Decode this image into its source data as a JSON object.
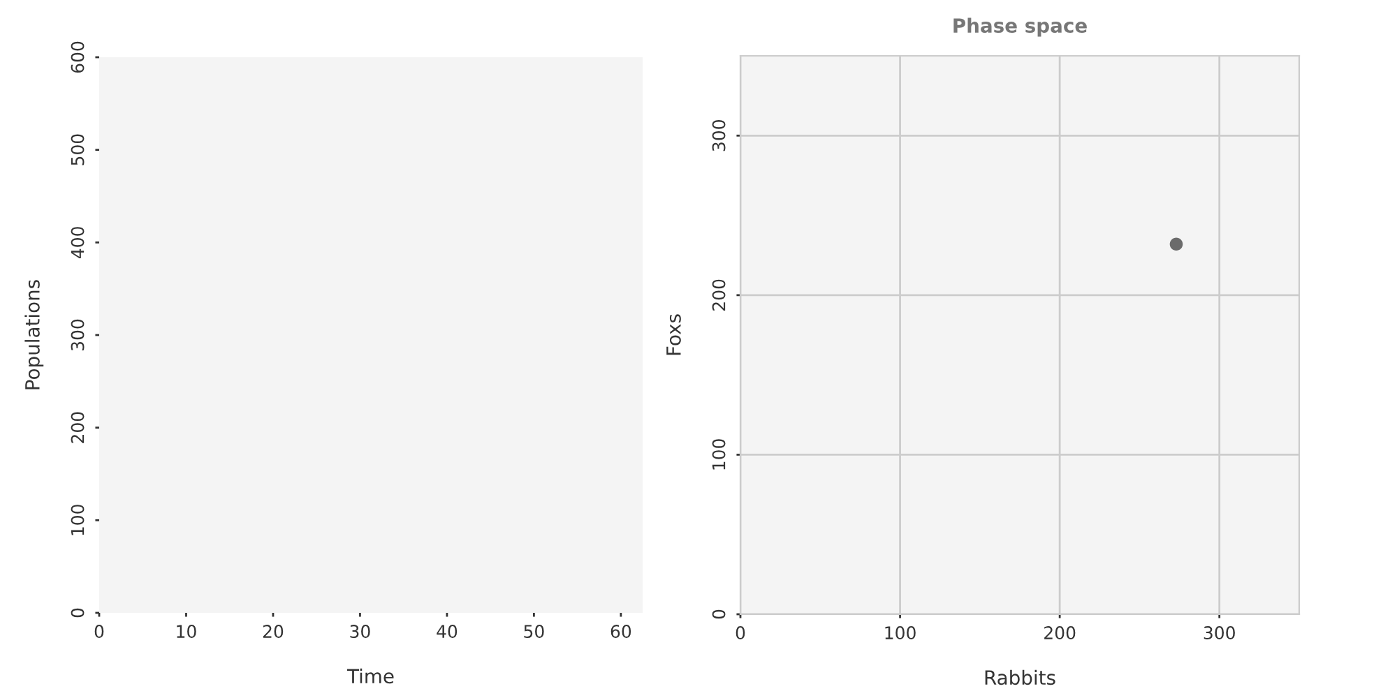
{
  "chart_data": [
    {
      "type": "line",
      "xlabel": "Time",
      "ylabel": "Populations",
      "xlim": [
        0,
        62.5
      ],
      "xticks": [
        0,
        10,
        20,
        30,
        40,
        50,
        60
      ],
      "ylim": [
        0,
        600
      ],
      "yticks": [
        0,
        100,
        200,
        300,
        400,
        500,
        600
      ]
    },
    {
      "type": "scatter",
      "title": "Phase space",
      "xlabel": "Rabbits",
      "ylabel": "Foxs",
      "xlim": [
        0,
        350
      ],
      "xticks": [
        0,
        100,
        200,
        300
      ],
      "ylim": [
        0,
        350
      ],
      "yticks": [
        0,
        100,
        200,
        300
      ],
      "grid": true,
      "marker": "circle",
      "series": [
        {
          "color": "#6b6b6b",
          "x": [
            273
          ],
          "values": [
            232
          ]
        }
      ]
    }
  ]
}
